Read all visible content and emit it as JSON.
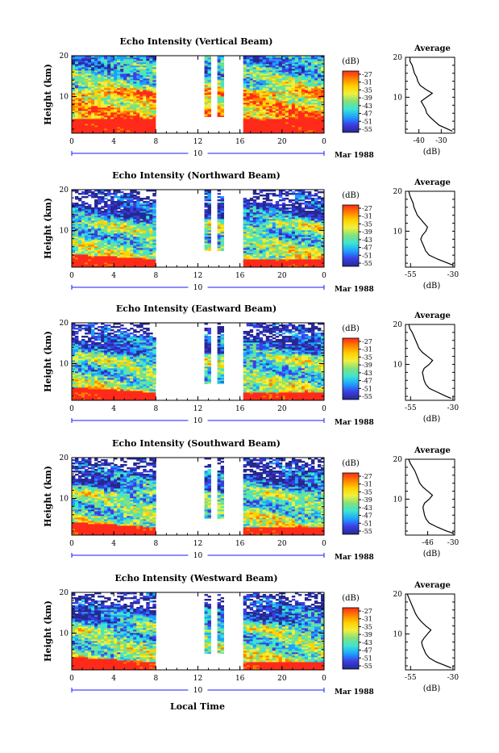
{
  "global": {
    "xlabel": "Local Time",
    "colorbar_unit": "(dB)",
    "colorbar_levels": [
      "-27",
      "-31",
      "-35",
      "-39",
      "-43",
      "-47",
      "-51",
      "-55"
    ],
    "colorbar_colors": [
      "#ff2a1a",
      "#ff7f00",
      "#ffd200",
      "#f0f03c",
      "#7fe07f",
      "#3ce6d2",
      "#1ea0ff",
      "#3b3fe6",
      "#262890"
    ],
    "profile_title": "Average",
    "profile_unit": "(dB)",
    "date_day": "10",
    "date_label": "Mar 1988"
  },
  "chart_data": [
    {
      "type": "heatmap",
      "title": "Echo Intensity (Vertical Beam)",
      "ylabel": "Height (km)",
      "x_ticks": [
        "0",
        "4",
        "8",
        "12",
        "16",
        "20",
        "0"
      ],
      "y_ticks": [
        "20",
        "10"
      ],
      "xlim": [
        0,
        24
      ],
      "ylim": [
        1,
        20
      ],
      "data_gaps": [
        [
          8,
          12.5
        ],
        [
          13.2,
          14
        ],
        [
          14.6,
          16.3
        ]
      ],
      "profile": {
        "xlim": [
          -46,
          -24
        ],
        "x_ticks": [
          "-40",
          "-30"
        ],
        "y_ticks": [
          "20",
          "10"
        ],
        "heights": [
          1.5,
          2,
          3,
          4,
          5,
          6,
          7,
          8,
          9,
          10,
          11,
          12,
          13,
          14,
          15,
          16,
          17,
          18,
          19,
          20
        ],
        "values": [
          -25,
          -27,
          -31,
          -33,
          -35,
          -36.5,
          -37,
          -38,
          -39,
          -36.5,
          -34,
          -37,
          -39.5,
          -40.5,
          -41,
          -42,
          -42.5,
          -43,
          -44,
          -44
        ]
      }
    },
    {
      "type": "heatmap",
      "title": "Echo Intensity (Northward Beam)",
      "ylabel": "Height (km)",
      "x_ticks": [
        "0",
        "4",
        "8",
        "12",
        "16",
        "20",
        "0"
      ],
      "y_ticks": [
        "20",
        "10"
      ],
      "xlim": [
        0,
        24
      ],
      "ylim": [
        1,
        20
      ],
      "data_gaps": [
        [
          8,
          12.5
        ],
        [
          13.2,
          14
        ],
        [
          14.6,
          16.3
        ]
      ],
      "profile": {
        "xlim": [
          -58,
          -29
        ],
        "x_ticks": [
          "-55",
          "-30"
        ],
        "y_ticks": [
          "20",
          "10"
        ],
        "heights": [
          1.5,
          2,
          3,
          4,
          5,
          6,
          7,
          8,
          9,
          10,
          11,
          12,
          13,
          14,
          15,
          16,
          17,
          18,
          19,
          20
        ],
        "values": [
          -30,
          -33,
          -39,
          -44,
          -46,
          -47,
          -48,
          -49,
          -48,
          -46,
          -45,
          -47,
          -49,
          -51,
          -52,
          -53,
          -53.5,
          -54.5,
          -55.5,
          -56
        ]
      }
    },
    {
      "type": "heatmap",
      "title": "Echo Intensity (Eastward Beam)",
      "ylabel": "Height (km)",
      "x_ticks": [
        "0",
        "4",
        "8",
        "12",
        "16",
        "20",
        "0"
      ],
      "y_ticks": [
        "20",
        "10"
      ],
      "xlim": [
        0,
        24
      ],
      "ylim": [
        1,
        20
      ],
      "data_gaps": [
        [
          8,
          12.5
        ],
        [
          13.2,
          14
        ],
        [
          14.6,
          16.3
        ]
      ],
      "profile": {
        "xlim": [
          -58,
          -29
        ],
        "x_ticks": [
          "-55",
          "-30"
        ],
        "y_ticks": [
          "20",
          "10"
        ],
        "heights": [
          1.5,
          2,
          3,
          4,
          5,
          6,
          7,
          8,
          9,
          10,
          11,
          12,
          13,
          14,
          15,
          16,
          17,
          18,
          19,
          20
        ],
        "values": [
          -31,
          -34,
          -39,
          -44,
          -46,
          -47,
          -47.5,
          -48,
          -47,
          -44,
          -42,
          -45,
          -48,
          -50,
          -51,
          -52,
          -53,
          -54,
          -55.5,
          -56
        ]
      }
    },
    {
      "type": "heatmap",
      "title": "Echo Intensity (Southward Beam)",
      "ylabel": "Height (km)",
      "x_ticks": [
        "0",
        "4",
        "8",
        "12",
        "16",
        "20",
        "0"
      ],
      "y_ticks": [
        "20",
        "10"
      ],
      "xlim": [
        0,
        24
      ],
      "ylim": [
        1,
        20
      ],
      "data_gaps": [
        [
          8,
          12.5
        ],
        [
          13.2,
          14
        ],
        [
          14.6,
          16.3
        ]
      ],
      "profile": {
        "xlim": [
          -60,
          -29
        ],
        "x_ticks": [
          "-46",
          "-30"
        ],
        "y_ticks": [
          "20",
          "10"
        ],
        "heights": [
          1.5,
          2,
          3,
          4,
          5,
          6,
          7,
          8,
          9,
          10,
          11,
          12,
          13,
          14,
          15,
          16,
          17,
          18,
          19,
          20
        ],
        "values": [
          -30,
          -34,
          -40,
          -45,
          -47,
          -48,
          -48.5,
          -49,
          -48,
          -45,
          -43,
          -46,
          -49,
          -51,
          -52,
          -53,
          -54,
          -55.5,
          -57,
          -58
        ]
      }
    },
    {
      "type": "heatmap",
      "title": "Echo Intensity (Westward Beam)",
      "ylabel": "Height (km)",
      "x_ticks": [
        "0",
        "4",
        "8",
        "12",
        "16",
        "20",
        "0"
      ],
      "y_ticks": [
        "20",
        "10"
      ],
      "xlim": [
        0,
        24
      ],
      "ylim": [
        1,
        20
      ],
      "data_gaps": [
        [
          8,
          12.5
        ],
        [
          13.2,
          14
        ],
        [
          14.6,
          16.3
        ]
      ],
      "profile": {
        "xlim": [
          -58,
          -29
        ],
        "x_ticks": [
          "-55",
          "-30"
        ],
        "y_ticks": [
          "20",
          "10"
        ],
        "heights": [
          1.5,
          2,
          3,
          4,
          5,
          6,
          7,
          8,
          9,
          10,
          11,
          12,
          13,
          14,
          15,
          16,
          17,
          18,
          19,
          20
        ],
        "values": [
          -31,
          -34,
          -40,
          -44,
          -46,
          -47,
          -48,
          -48.5,
          -47,
          -45,
          -43,
          -46,
          -48.5,
          -50.5,
          -52,
          -53,
          -54,
          -55,
          -56,
          -57
        ]
      }
    }
  ]
}
